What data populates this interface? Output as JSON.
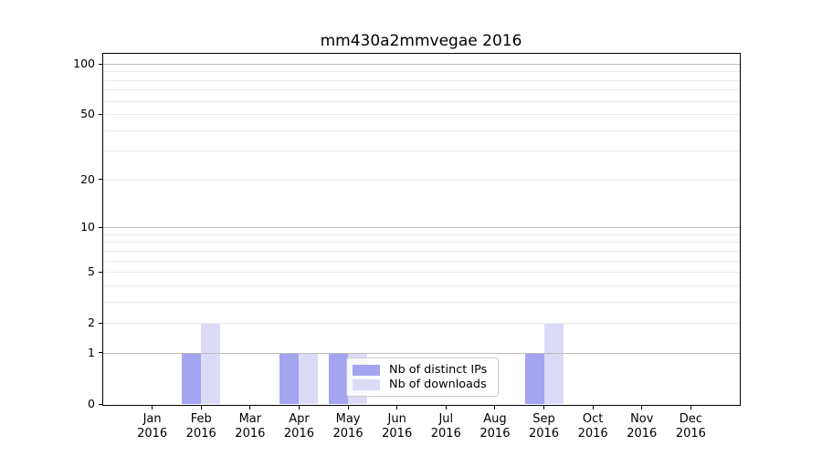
{
  "chart_data": {
    "type": "bar",
    "title": "mm430a2mmvegae 2016",
    "xlabel": "",
    "ylabel": "",
    "y_scale": "log1p (y position proportional to log10(1+value))",
    "ylim": [
      0,
      100
    ],
    "grid": "horizontal only, drawn over bars",
    "legend_position": "inside plot, lower center",
    "categories": [
      {
        "month": "Jan",
        "year": "2016"
      },
      {
        "month": "Feb",
        "year": "2016"
      },
      {
        "month": "Mar",
        "year": "2016"
      },
      {
        "month": "Apr",
        "year": "2016"
      },
      {
        "month": "May",
        "year": "2016"
      },
      {
        "month": "Jun",
        "year": "2016"
      },
      {
        "month": "Jul",
        "year": "2016"
      },
      {
        "month": "Aug",
        "year": "2016"
      },
      {
        "month": "Sep",
        "year": "2016"
      },
      {
        "month": "Oct",
        "year": "2016"
      },
      {
        "month": "Nov",
        "year": "2016"
      },
      {
        "month": "Dec",
        "year": "2016"
      }
    ],
    "series": [
      {
        "name": "Nb of distinct IPs",
        "color": "#a4a4f0",
        "values": [
          0,
          1,
          0,
          1,
          1,
          0,
          0,
          0,
          1,
          0,
          0,
          0
        ]
      },
      {
        "name": "Nb of downloads",
        "color": "#dbdbf8",
        "values": [
          0,
          2,
          0,
          1,
          1,
          0,
          0,
          0,
          2,
          0,
          0,
          0
        ]
      }
    ],
    "y_ticks": [
      "0",
      "1",
      "2",
      "5",
      "10",
      "20",
      "50",
      "100"
    ],
    "grid_major_values": [
      1,
      10,
      100
    ],
    "grid_minor_values": [
      2,
      3,
      4,
      5,
      6,
      7,
      8,
      9,
      20,
      30,
      40,
      50,
      60,
      70,
      80,
      90
    ],
    "legend": [
      {
        "label": "Nb of distinct IPs",
        "color": "#a4a4f0"
      },
      {
        "label": "Nb of downloads",
        "color": "#dbdbf8"
      }
    ],
    "colors": {
      "background": "#ffffff",
      "axis": "#000000",
      "grid_major": "#bdbdbd",
      "grid_minor": "#ebebeb",
      "legend_border": "#cccccc"
    }
  }
}
